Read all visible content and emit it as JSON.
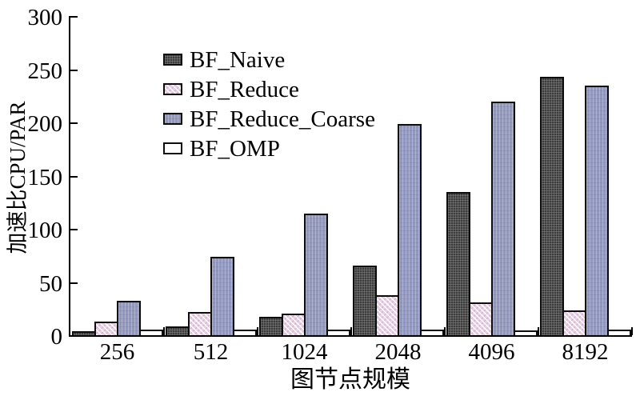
{
  "chart_data": {
    "type": "bar",
    "title": "",
    "xlabel": "图节点规模",
    "ylabel": "加速比CPU/PAR",
    "categories": [
      "256",
      "512",
      "1024",
      "2048",
      "4096",
      "8192"
    ],
    "series": [
      {
        "name": "BF_Naive",
        "color": "#3c3c3c",
        "pattern": "naive",
        "values": [
          2,
          7,
          16,
          64,
          133,
          241
        ]
      },
      {
        "name": "BF_Reduce",
        "color": "#e9d1e5",
        "pattern": "reduce",
        "values": [
          11,
          20,
          19,
          36,
          29,
          22
        ]
      },
      {
        "name": "BF_Reduce_Coarse",
        "color": "#9298be",
        "pattern": "coarse",
        "values": [
          31,
          72,
          113,
          197,
          218,
          233
        ]
      },
      {
        "name": "BF_OMP",
        "color": "#ffffff",
        "pattern": "omp",
        "values": [
          4,
          4,
          4,
          4,
          3,
          4
        ]
      }
    ],
    "ylim": [
      0,
      300
    ],
    "yticks": [
      0,
      50,
      100,
      150,
      200,
      250,
      300
    ],
    "legend_position": "top-left",
    "grid": false,
    "axis_color": "#000000",
    "bar_border_color": "#0d0d0d"
  }
}
